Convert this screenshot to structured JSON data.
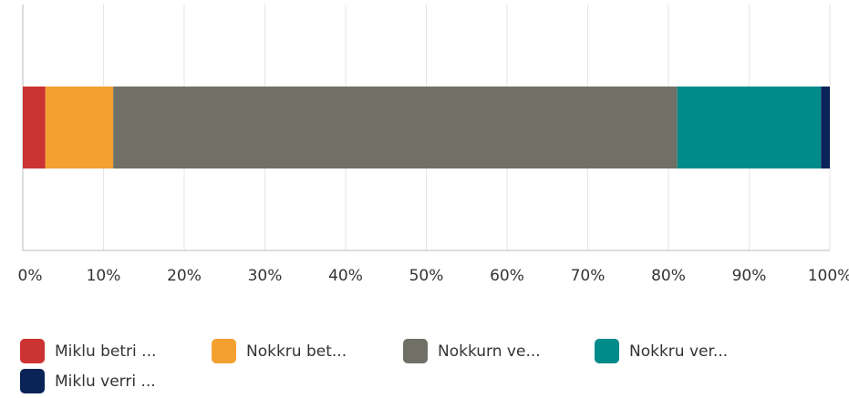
{
  "chart_data": {
    "type": "bar",
    "orientation": "horizontal",
    "stacked": true,
    "categories": [
      null
    ],
    "series": [
      {
        "name": "Miklu betri ...",
        "color": "#cc3333",
        "values": [
          2.8
        ]
      },
      {
        "name": "Nokkru bet...",
        "color": "#f2a030",
        "values": [
          8.4
        ]
      },
      {
        "name": "Nokkurn ve...",
        "color": "#707067",
        "values": [
          69.9
        ]
      },
      {
        "name": "Nokkru ver...",
        "color": "#008b8b",
        "values": [
          17.8
        ]
      },
      {
        "name": "Miklu verri ...",
        "color": "#0a2458",
        "values": [
          1.1
        ]
      }
    ],
    "xlim": [
      0,
      100
    ],
    "xticks": [
      {
        "value": 0,
        "label": "0%"
      },
      {
        "value": 10,
        "label": "10%"
      },
      {
        "value": 20,
        "label": "20%"
      },
      {
        "value": 30,
        "label": "30%"
      },
      {
        "value": 40,
        "label": "40%"
      },
      {
        "value": 50,
        "label": "50%"
      },
      {
        "value": 60,
        "label": "60%"
      },
      {
        "value": 70,
        "label": "70%"
      },
      {
        "value": 80,
        "label": "80%"
      },
      {
        "value": 90,
        "label": "90%"
      },
      {
        "value": 100,
        "label": "100%"
      }
    ],
    "grid": true
  }
}
